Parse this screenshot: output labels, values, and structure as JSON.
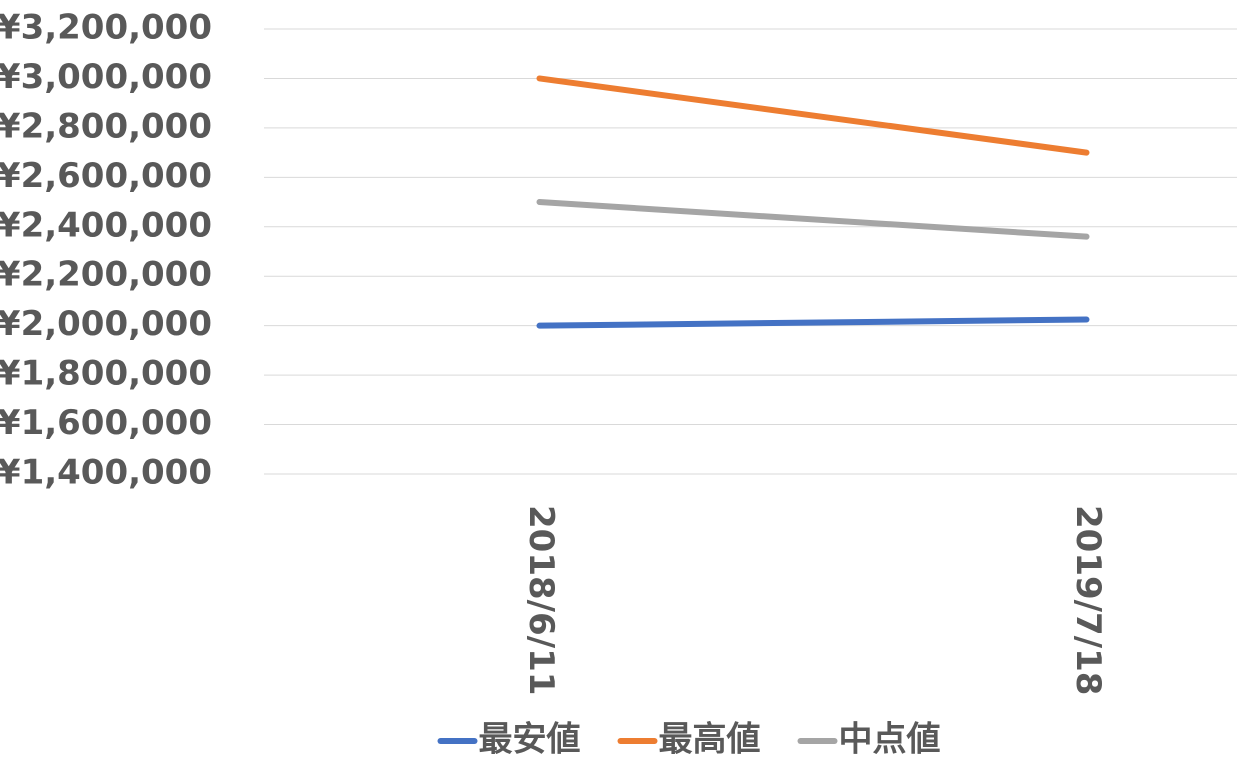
{
  "chart_data": {
    "type": "line",
    "categories": [
      "2018/6/11",
      "2019/7/18"
    ],
    "series": [
      {
        "name": "最安値",
        "color": "#4472c4",
        "values": [
          2000000,
          2025000
        ]
      },
      {
        "name": "最高値",
        "color": "#ed7d31",
        "values": [
          3000000,
          2700000
        ]
      },
      {
        "name": "中点値",
        "color": "#a5a5a5",
        "values": [
          2500000,
          2360000
        ]
      }
    ],
    "ylim": [
      1400000,
      3200000
    ],
    "yticks": [
      {
        "value": 1400000,
        "label": "¥1,400,000"
      },
      {
        "value": 1600000,
        "label": "¥1,600,000"
      },
      {
        "value": 1800000,
        "label": "¥1,800,000"
      },
      {
        "value": 2000000,
        "label": "¥2,000,000"
      },
      {
        "value": 2200000,
        "label": "¥2,200,000"
      },
      {
        "value": 2400000,
        "label": "¥2,400,000"
      },
      {
        "value": 2600000,
        "label": "¥2,600,000"
      },
      {
        "value": 2800000,
        "label": "¥2,800,000"
      },
      {
        "value": 3000000,
        "label": "¥3,000,000"
      },
      {
        "value": 3200000,
        "label": "¥3,200,000"
      }
    ],
    "grid": true,
    "legend": "bottom"
  }
}
